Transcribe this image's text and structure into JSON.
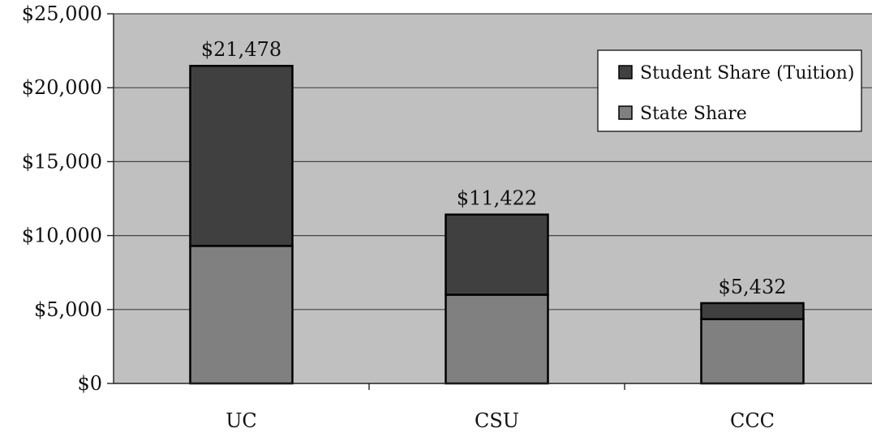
{
  "chart_data": {
    "type": "bar",
    "stacked": true,
    "categories": [
      "UC",
      "CSU",
      "CCC"
    ],
    "series": [
      {
        "name": "State Share",
        "values": [
          9300,
          6000,
          4350
        ],
        "color": "#808080"
      },
      {
        "name": "Student Share (Tuition)",
        "values": [
          12178,
          5422,
          1082
        ],
        "color": "#404040"
      }
    ],
    "totals": [
      21478,
      11422,
      5432
    ],
    "total_labels": [
      "$21,478",
      "$11,422",
      "$5,432"
    ],
    "y_ticks": [
      0,
      5000,
      10000,
      15000,
      20000,
      25000
    ],
    "y_tick_labels": [
      "$0",
      "$5,000",
      "$10,000",
      "$15,000",
      "$20,000",
      "$25,000"
    ],
    "ylim": [
      0,
      25000
    ],
    "grid": true,
    "legend_position": "top-right",
    "legend_order": [
      "Student Share (Tuition)",
      "State Share"
    ],
    "plot_background": "#c0c0c0",
    "page_background": "#ffffff",
    "gridline_color": "#444444"
  }
}
